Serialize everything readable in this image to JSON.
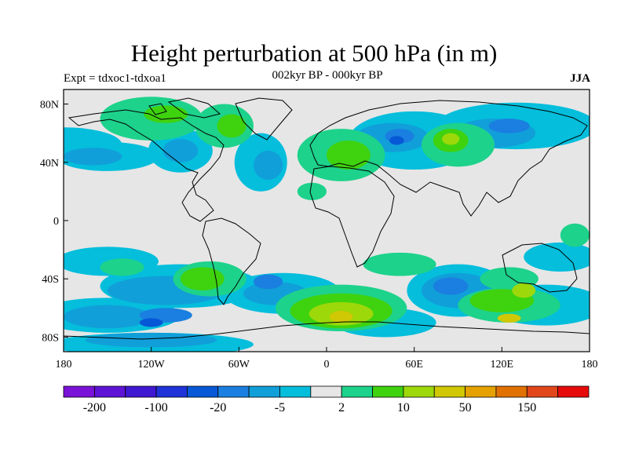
{
  "title": "Height perturbation at 500 hPa (in m)",
  "subtitle_left": "Expt = tdxoc1-tdxoa1",
  "subtitle_center": "002kyr BP - 000kyr BP",
  "subtitle_right": "JJA",
  "axes": {
    "x_labels": [
      "180",
      "120W",
      "60W",
      "0",
      "60E",
      "120E",
      "180"
    ],
    "x_values": [
      -180,
      -120,
      -60,
      0,
      60,
      120,
      180
    ],
    "y_labels": [
      "80N",
      "40N",
      "0",
      "40S",
      "80S"
    ],
    "y_values": [
      80,
      40,
      0,
      -40,
      -80
    ],
    "lon_range": [
      -180,
      180
    ],
    "lat_range": [
      -90,
      90
    ]
  },
  "colorbar": {
    "colors": [
      "#7a12d8",
      "#5f13d6",
      "#3f18d2",
      "#1f33d8",
      "#0758d6",
      "#1a7fe0",
      "#119fd9",
      "#04bedc",
      "#e6e6e6",
      "#1dd28b",
      "#3fd20f",
      "#9dd80a",
      "#d0c804",
      "#e5a100",
      "#e17100",
      "#e1471a",
      "#e60a0a"
    ],
    "labels": [
      "-200",
      "-100",
      "-20",
      "-5",
      "2",
      "10",
      "50",
      "150"
    ],
    "label_boundary_index": [
      1,
      3,
      5,
      7,
      9,
      11,
      13,
      15
    ]
  },
  "map_fields": [
    {
      "level": "cyan",
      "color": "#04bedc",
      "blobs": [
        [
          -180,
          52,
          40,
          12
        ],
        [
          -150,
          44,
          35,
          10
        ],
        [
          -100,
          48,
          22,
          15
        ],
        [
          -45,
          40,
          18,
          20
        ],
        [
          60,
          55,
          45,
          20
        ],
        [
          130,
          65,
          55,
          16
        ],
        [
          -150,
          -28,
          35,
          10
        ],
        [
          -100,
          -45,
          55,
          15
        ],
        [
          -150,
          -65,
          50,
          12
        ],
        [
          -30,
          -50,
          40,
          14
        ],
        [
          90,
          -48,
          35,
          18
        ],
        [
          40,
          -70,
          35,
          10
        ],
        [
          160,
          -25,
          25,
          10
        ],
        [
          150,
          -58,
          40,
          14
        ],
        [
          -120,
          -85,
          70,
          8
        ]
      ]
    },
    {
      "level": "blue-light",
      "color": "#119fd9",
      "blobs": [
        [
          -160,
          44,
          20,
          6
        ],
        [
          -100,
          48,
          12,
          8
        ],
        [
          -40,
          38,
          10,
          10
        ],
        [
          45,
          57,
          25,
          10
        ],
        [
          115,
          60,
          28,
          10
        ],
        [
          -110,
          -48,
          40,
          10
        ],
        [
          -150,
          -66,
          30,
          8
        ],
        [
          -35,
          -50,
          22,
          8
        ],
        [
          90,
          -48,
          25,
          12
        ],
        [
          -120,
          -82,
          45,
          5
        ]
      ]
    },
    {
      "level": "blue",
      "color": "#1a7fe0",
      "blobs": [
        [
          50,
          58,
          10,
          5
        ],
        [
          125,
          65,
          14,
          5
        ],
        [
          -40,
          -42,
          10,
          5
        ],
        [
          -110,
          -65,
          18,
          5
        ],
        [
          85,
          -45,
          12,
          6
        ]
      ]
    },
    {
      "level": "blue-dark",
      "color": "#0758d6",
      "blobs": [
        [
          48,
          55,
          5,
          3
        ],
        [
          -120,
          -70,
          8,
          3
        ]
      ]
    },
    {
      "level": "green-light",
      "color": "#1dd28b",
      "blobs": [
        [
          -120,
          70,
          35,
          15
        ],
        [
          -70,
          65,
          20,
          15
        ],
        [
          10,
          45,
          30,
          18
        ],
        [
          -10,
          20,
          10,
          6
        ],
        [
          90,
          52,
          25,
          15
        ],
        [
          170,
          -10,
          10,
          8
        ],
        [
          -140,
          -32,
          15,
          6
        ],
        [
          -80,
          -40,
          25,
          12
        ],
        [
          50,
          -30,
          25,
          8
        ],
        [
          10,
          -60,
          45,
          16
        ],
        [
          125,
          -58,
          35,
          12
        ],
        [
          125,
          -40,
          20,
          8
        ]
      ]
    },
    {
      "level": "green",
      "color": "#3fd20f",
      "blobs": [
        [
          -110,
          73,
          15,
          6
        ],
        [
          -65,
          65,
          10,
          8
        ],
        [
          15,
          45,
          15,
          10
        ],
        [
          85,
          55,
          12,
          8
        ],
        [
          -85,
          -40,
          15,
          8
        ],
        [
          10,
          -62,
          35,
          12
        ],
        [
          120,
          -55,
          22,
          8
        ]
      ]
    },
    {
      "level": "yellow-green",
      "color": "#9dd80a",
      "blobs": [
        [
          85,
          56,
          6,
          4
        ],
        [
          10,
          -64,
          22,
          8
        ],
        [
          135,
          -48,
          8,
          5
        ]
      ]
    },
    {
      "level": "yellow",
      "color": "#d0c804",
      "blobs": [
        [
          10,
          -66,
          8,
          4
        ],
        [
          125,
          -67,
          8,
          3
        ]
      ]
    }
  ]
}
